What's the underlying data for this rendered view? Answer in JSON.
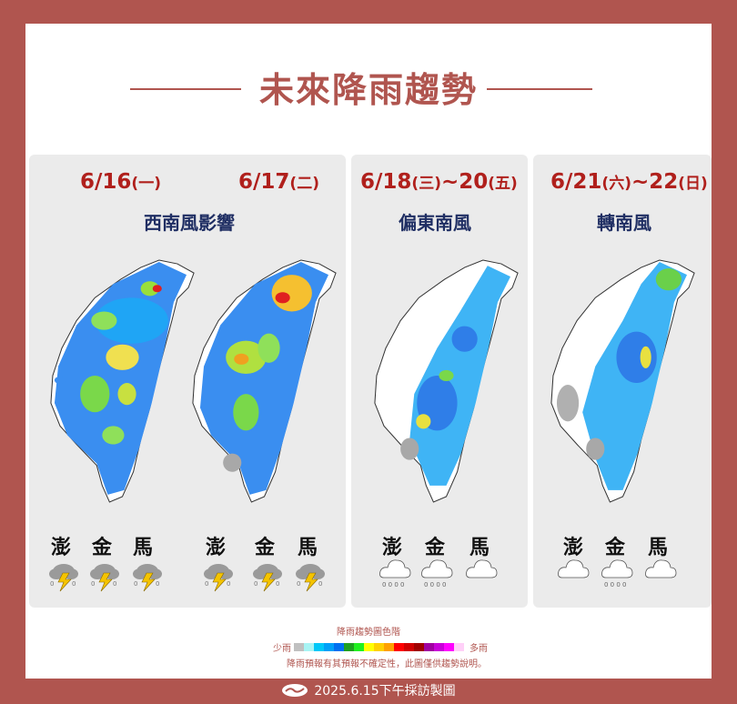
{
  "title": "未來降雨趨勢",
  "panels": [
    {
      "dates": [
        {
          "day": "6/16",
          "weekday": "(一)"
        },
        {
          "day": "6/17",
          "weekday": "(二)"
        }
      ],
      "subtitle": "西南風影響",
      "islands": [
        "澎",
        "金",
        "馬"
      ],
      "weather": [
        "thunderstorm-icon",
        "thunderstorm-icon",
        "thunderstorm-icon",
        "thunderstorm-icon",
        "thunderstorm-icon",
        "thunderstorm-icon"
      ]
    },
    {
      "dates": [
        {
          "day": "6/18",
          "weekday": "(三)",
          "day2": "~20",
          "weekday2": "(五)"
        }
      ],
      "subtitle": "偏東南風",
      "islands": [
        "澎",
        "金",
        "馬"
      ],
      "weather": [
        "rain-cloud-icon",
        "rain-cloud-icon",
        "cloud-icon"
      ]
    },
    {
      "dates": [
        {
          "day": "6/21",
          "weekday": "(六)",
          "day2": "~22",
          "weekday2": "(日)"
        }
      ],
      "subtitle": "轉南風",
      "islands": [
        "澎",
        "金",
        "馬"
      ],
      "weather": [
        "cloud-icon",
        "rain-cloud-icon",
        "cloud-icon"
      ]
    }
  ],
  "legend": {
    "title": "降雨趨勢圖色階",
    "low_label": "少雨",
    "high_label": "多雨",
    "colors": [
      "#c0c0c0",
      "#a8f4f4",
      "#00c8f8",
      "#00a0f8",
      "#0070f0",
      "#20a020",
      "#20f020",
      "#ffff00",
      "#ffd000",
      "#ffa000",
      "#ff0000",
      "#d00000",
      "#a00000",
      "#a000a0",
      "#c800d8",
      "#ff00ff",
      "#ffd0f8"
    ],
    "note": "降雨預報有其預報不確定性，此圖僅供趨勢說明。"
  },
  "footer": {
    "text": "2025.6.15下午採訪製圖"
  },
  "colors": {
    "brand": "#b0554f",
    "date": "#b0201c",
    "subtitle": "#1f2e63"
  }
}
